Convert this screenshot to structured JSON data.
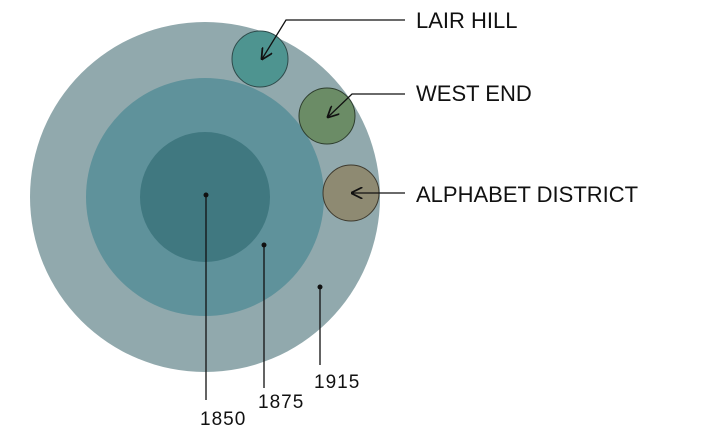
{
  "rings": [
    {
      "label": "1850"
    },
    {
      "label": "1875"
    },
    {
      "label": "1915"
    }
  ],
  "districts": [
    {
      "label": "LAIR HILL"
    },
    {
      "label": "WEST END"
    },
    {
      "label": "ALPHABET DISTRICT"
    }
  ]
}
